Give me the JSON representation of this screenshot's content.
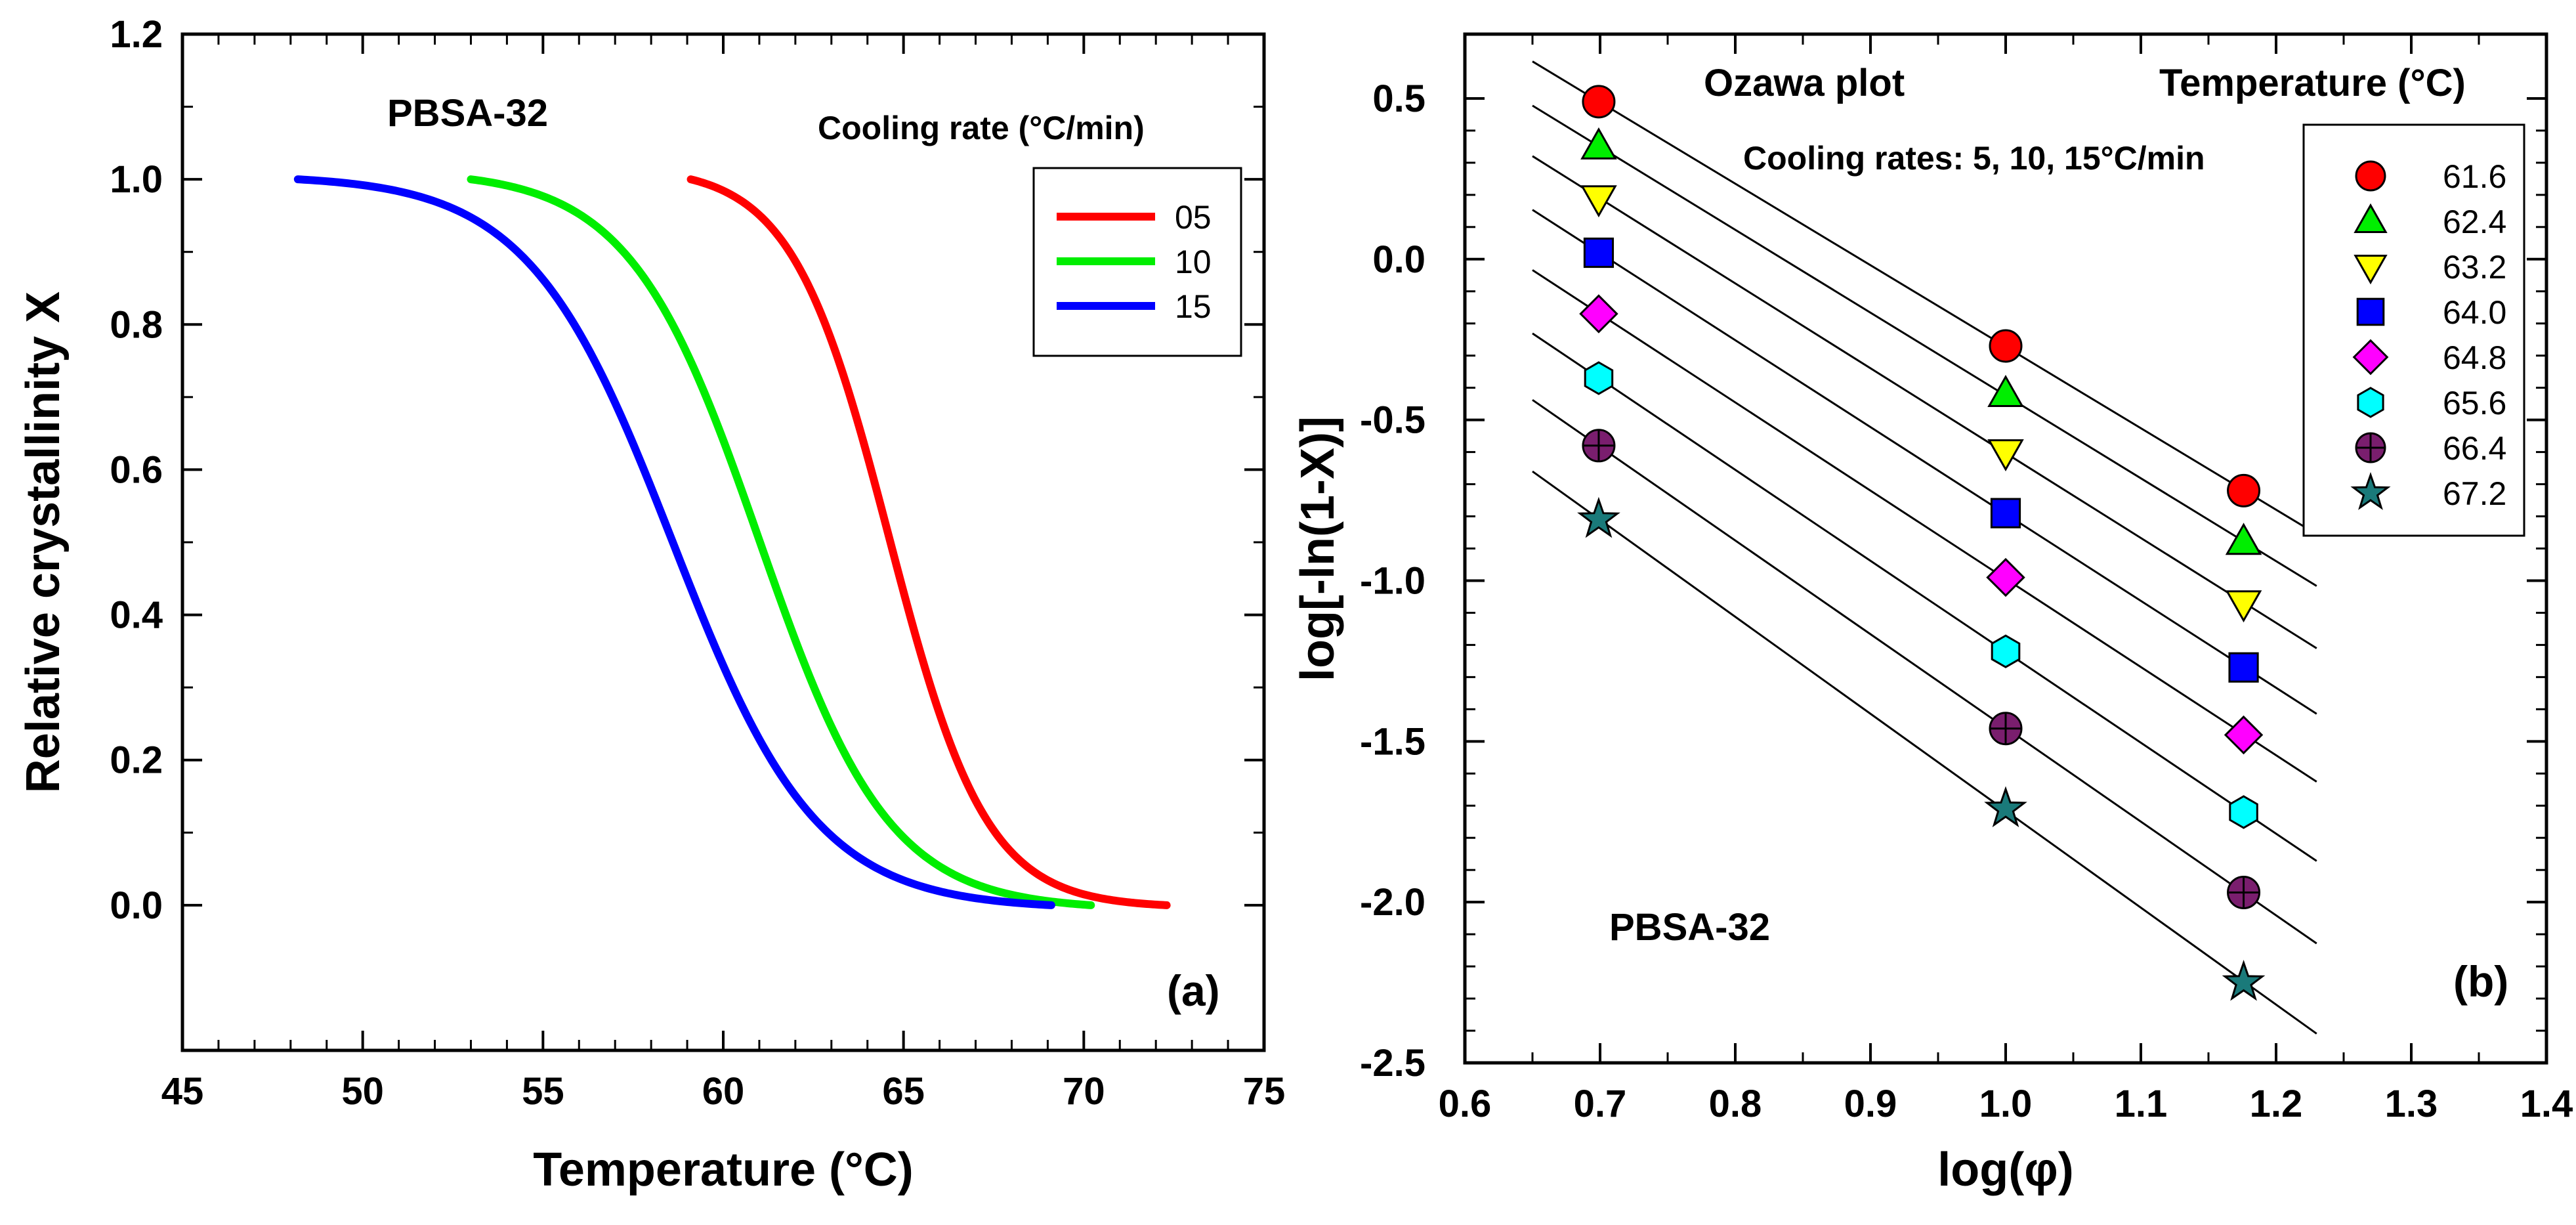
{
  "chart_data": [
    {
      "type": "line",
      "panel_label": "(a)",
      "sample_label": "PBSA-32",
      "xlabel": "Temperature (°C)",
      "ylabel": "Relative crystallinity X",
      "xlim": [
        45,
        75
      ],
      "ylim": [
        -0.2,
        1.2
      ],
      "xticks": [
        "45",
        "50",
        "55",
        "60",
        "65",
        "70",
        "75"
      ],
      "yticks": [
        "0.0",
        "0.2",
        "0.4",
        "0.6",
        "0.8",
        "1.0",
        "1.2"
      ],
      "legend_title": "Cooling rate (°C/min)",
      "legend_position": "top-right",
      "series": [
        {
          "name": "05",
          "color": "#ff0000",
          "t_start": 59.1,
          "t_end": 72.3,
          "t_half": 64.6,
          "width": 1.35
        },
        {
          "name": "10",
          "color": "#00ee00",
          "t_start": 53.0,
          "t_end": 70.2,
          "t_half": 61.0,
          "width": 1.8
        },
        {
          "name": "15",
          "color": "#0000ff",
          "t_start": 48.2,
          "t_end": 69.1,
          "t_half": 58.6,
          "width": 2.0
        }
      ]
    },
    {
      "type": "scatter",
      "panel_label": "(b)",
      "title": "Ozawa plot",
      "subtitle": "Cooling rates: 5, 10, 15°C/min",
      "sample_label": "PBSA-32",
      "xlabel": "log(φ)",
      "ylabel": "log[-ln(1-X)]",
      "xlim": [
        0.6,
        1.4
      ],
      "ylim": [
        -2.5,
        0.7
      ],
      "xticks": [
        "0.6",
        "0.7",
        "0.8",
        "0.9",
        "1.0",
        "1.1",
        "1.2",
        "1.3",
        "1.4"
      ],
      "yticks": [
        "-2.5",
        "-2.0",
        "-1.5",
        "-1.0",
        "-0.5",
        "0.0",
        "0.5"
      ],
      "legend_title": "Temperature (°C)",
      "legend_position": "top-right",
      "fit_line_range": [
        0.65,
        1.23
      ],
      "x": [
        0.699,
        1.0,
        1.176
      ],
      "series": [
        {
          "name": "61.6",
          "marker": "circle",
          "color": "#ff0000",
          "values": [
            0.49,
            -0.27,
            -0.72
          ]
        },
        {
          "name": "62.4",
          "marker": "triangle-up",
          "color": "#00ee00",
          "values": [
            0.35,
            -0.42,
            -0.88
          ]
        },
        {
          "name": "63.2",
          "marker": "triangle-down",
          "color": "#ffff00",
          "values": [
            0.19,
            -0.6,
            -1.07
          ]
        },
        {
          "name": "64.0",
          "marker": "square",
          "color": "#0000ff",
          "values": [
            0.02,
            -0.79,
            -1.27
          ]
        },
        {
          "name": "64.8",
          "marker": "diamond",
          "color": "#ff00ff",
          "values": [
            -0.17,
            -0.99,
            -1.48
          ]
        },
        {
          "name": "65.6",
          "marker": "hexagon",
          "color": "#00ffff",
          "values": [
            -0.37,
            -1.22,
            -1.72
          ]
        },
        {
          "name": "66.4",
          "marker": "circle-cross",
          "color": "#7a1e6e",
          "values": [
            -0.58,
            -1.46,
            -1.97
          ]
        },
        {
          "name": "67.2",
          "marker": "star",
          "color": "#1a7a7a",
          "values": [
            -0.81,
            -1.71,
            -2.25
          ]
        }
      ]
    }
  ]
}
